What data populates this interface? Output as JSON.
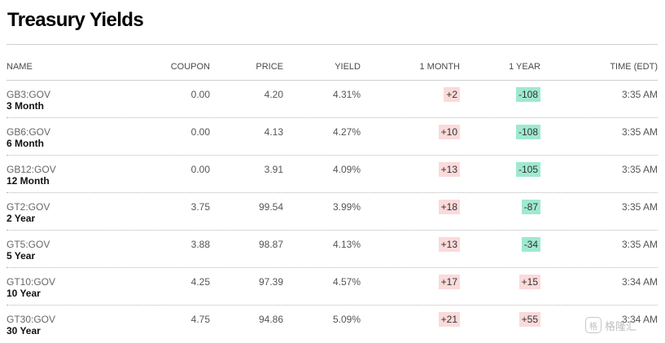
{
  "title": "Treasury Yields",
  "columns": {
    "name": "NAME",
    "coupon": "COUPON",
    "price": "PRICE",
    "yield": "YIELD",
    "month": "1 MONTH",
    "year": "1 YEAR",
    "time": "TIME (EDT)"
  },
  "rows": [
    {
      "symbol": "GB3:GOV",
      "name": "3 Month",
      "coupon": "0.00",
      "price": "4.20",
      "yield": "4.31%",
      "month": "+2",
      "year": "-108",
      "time": "3:35 AM"
    },
    {
      "symbol": "GB6:GOV",
      "name": "6 Month",
      "coupon": "0.00",
      "price": "4.13",
      "yield": "4.27%",
      "month": "+10",
      "year": "-108",
      "time": "3:35 AM"
    },
    {
      "symbol": "GB12:GOV",
      "name": "12 Month",
      "coupon": "0.00",
      "price": "3.91",
      "yield": "4.09%",
      "month": "+13",
      "year": "-105",
      "time": "3:35 AM"
    },
    {
      "symbol": "GT2:GOV",
      "name": "2 Year",
      "coupon": "3.75",
      "price": "99.54",
      "yield": "3.99%",
      "month": "+18",
      "year": "-87",
      "time": "3:35 AM"
    },
    {
      "symbol": "GT5:GOV",
      "name": "5 Year",
      "coupon": "3.88",
      "price": "98.87",
      "yield": "4.13%",
      "month": "+13",
      "year": "-34",
      "time": "3:35 AM"
    },
    {
      "symbol": "GT10:GOV",
      "name": "10 Year",
      "coupon": "4.25",
      "price": "97.39",
      "yield": "4.57%",
      "month": "+17",
      "year": "+15",
      "time": "3:34 AM"
    },
    {
      "symbol": "GT30:GOV",
      "name": "30 Year",
      "coupon": "4.75",
      "price": "94.86",
      "yield": "5.09%",
      "month": "+21",
      "year": "+55",
      "time": "3:34 AM"
    }
  ],
  "colors": {
    "positive_bg": "#fbdada",
    "negative_bg": "#9fe9d1"
  },
  "watermark": {
    "icon": "gelonghui-logo-icon",
    "text": "格隆汇"
  }
}
